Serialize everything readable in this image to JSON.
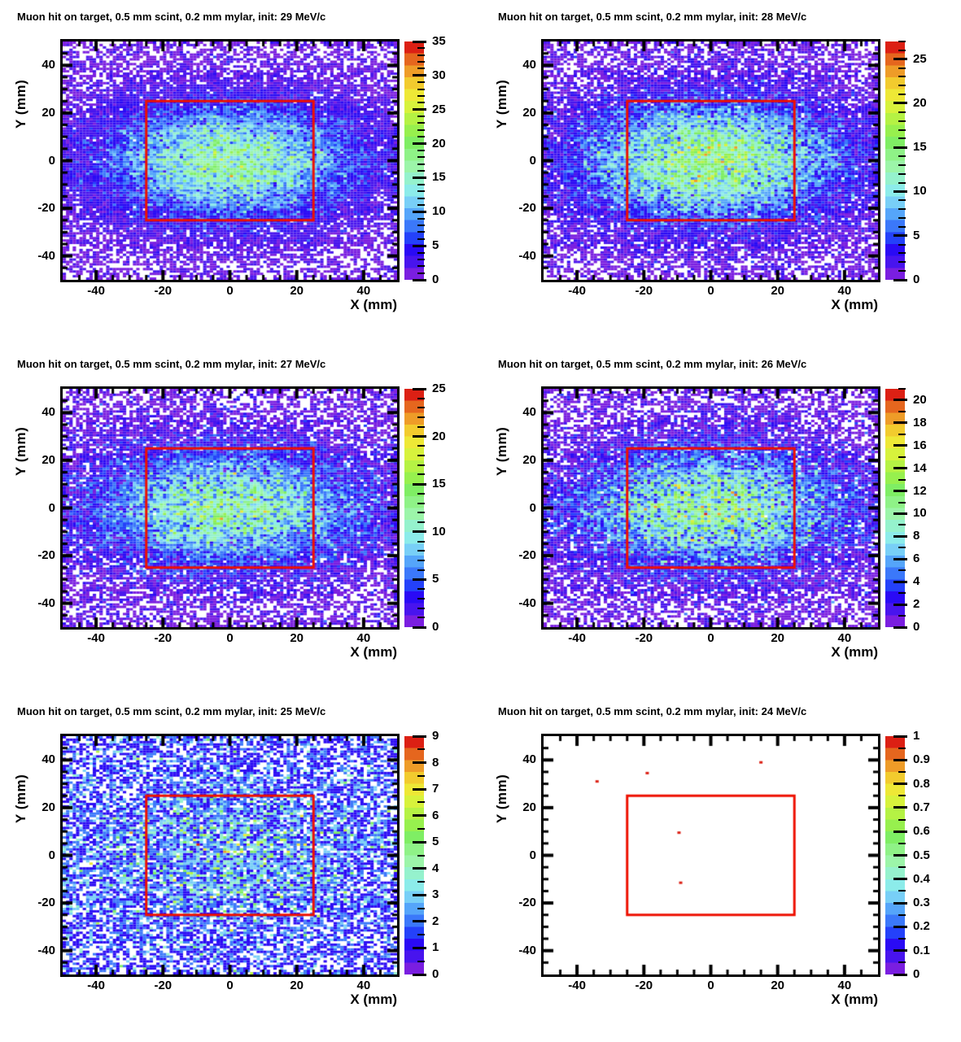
{
  "figure": {
    "background": "#ffffff",
    "frame_color": "#000000",
    "target_box": {
      "x_min": -25,
      "x_max": 25,
      "y_min": -25,
      "y_max": 25,
      "color": "#ee1000"
    },
    "palette": [
      "#7a1ee0",
      "#4814ee",
      "#2a0af5",
      "#2441fa",
      "#3b78fa",
      "#55a5fa",
      "#78cff7",
      "#8cecea",
      "#95f2cd",
      "#9cf5a9",
      "#8ff287",
      "#7fee64",
      "#97f04e",
      "#b5f244",
      "#d7f23c",
      "#eee836",
      "#f2cb2e",
      "#ee9c28",
      "#e5661e",
      "#dc2014"
    ]
  },
  "axes": {
    "xlabel": "X (mm)",
    "ylabel": "Y (mm)",
    "x_range": [
      -50,
      50
    ],
    "y_range": [
      -50,
      50
    ],
    "x_major_ticks": [
      -40,
      -20,
      0,
      20,
      40
    ],
    "y_major_ticks": [
      40,
      20,
      0,
      -20,
      -40
    ],
    "minor_tick_step_mm": 5,
    "bins_x": 100,
    "bins_y": 100
  },
  "chart_data": [
    {
      "type": "heatmap",
      "title": "Muon hit on target, 0.5 mm scint, 0.2 mm mylar, init: 29 MeV/c",
      "init_momentum_MeVc": 29,
      "z_min": 0,
      "z_max": 35,
      "colorbar_tick_labels": [
        "0",
        "5",
        "10",
        "15",
        "20",
        "25",
        "30",
        "35"
      ],
      "colorbar_minor_step": 1,
      "distribution": {
        "type": "gaussian2d_poisson",
        "background": 0.8,
        "amplitude": 16,
        "sigma_x_mm": 24,
        "sigma_y_mm": 15,
        "seed": 13
      },
      "points": null
    },
    {
      "type": "heatmap",
      "title": "Muon hit on target, 0.5 mm scint, 0.2 mm mylar, init: 28 MeV/c",
      "init_momentum_MeVc": 28,
      "z_min": 0,
      "z_max": 27,
      "colorbar_tick_labels": [
        "0",
        "5",
        "10",
        "15",
        "20",
        "25"
      ],
      "colorbar_minor_step": 1,
      "distribution": {
        "type": "gaussian2d_poisson",
        "background": 0.8,
        "amplitude": 14,
        "sigma_x_mm": 25,
        "sigma_y_mm": 16,
        "seed": 27
      },
      "points": null
    },
    {
      "type": "heatmap",
      "title": "Muon hit on target, 0.5 mm scint, 0.2 mm mylar, init: 27 MeV/c",
      "init_momentum_MeVc": 27,
      "z_min": 0,
      "z_max": 25,
      "colorbar_tick_labels": [
        "0",
        "5",
        "10",
        "15",
        "20",
        "25"
      ],
      "colorbar_minor_step": 1,
      "distribution": {
        "type": "gaussian2d_poisson",
        "background": 0.8,
        "amplitude": 11,
        "sigma_x_mm": 25,
        "sigma_y_mm": 15,
        "seed": 42
      },
      "points": null
    },
    {
      "type": "heatmap",
      "title": "Muon hit on target, 0.5 mm scint, 0.2 mm mylar, init: 26 MeV/c",
      "init_momentum_MeVc": 26,
      "z_min": 0,
      "z_max": 21,
      "colorbar_tick_labels": [
        "0",
        "2",
        "4",
        "6",
        "8",
        "10",
        "12",
        "14",
        "16",
        "18",
        "20"
      ],
      "colorbar_minor_step": 1,
      "distribution": {
        "type": "gaussian2d_poisson",
        "background": 0.8,
        "amplitude": 9.5,
        "sigma_x_mm": 26,
        "sigma_y_mm": 16,
        "seed": 57
      },
      "points": null
    },
    {
      "type": "heatmap",
      "title": "Muon hit on target, 0.5 mm scint, 0.2 mm mylar, init: 25 MeV/c",
      "init_momentum_MeVc": 25,
      "z_min": 0,
      "z_max": 9,
      "colorbar_tick_labels": [
        "0",
        "1",
        "2",
        "3",
        "4",
        "5",
        "6",
        "7",
        "8",
        "9"
      ],
      "colorbar_minor_step": 0.5,
      "distribution": {
        "type": "gaussian2d_poisson",
        "background": 0.9,
        "amplitude": 1.6,
        "sigma_x_mm": 30,
        "sigma_y_mm": 20,
        "seed": 71
      },
      "points": null
    },
    {
      "type": "heatmap",
      "title": "Muon hit on target, 0.5 mm scint, 0.2 mm mylar, init: 24 MeV/c",
      "init_momentum_MeVc": 24,
      "z_min": 0,
      "z_max": 1,
      "colorbar_tick_labels": [
        "0",
        "0.1",
        "0.2",
        "0.3",
        "0.4",
        "0.5",
        "0.6",
        "0.7",
        "0.8",
        "0.9",
        "1"
      ],
      "colorbar_minor_step": 0.05,
      "distribution": null,
      "points": [
        {
          "x": -34,
          "y": 31,
          "value": 1
        },
        {
          "x": -19,
          "y": 34.5,
          "value": 1
        },
        {
          "x": 15,
          "y": 39,
          "value": 1
        },
        {
          "x": -9.5,
          "y": 9.5,
          "value": 1
        },
        {
          "x": -9,
          "y": -11.5,
          "value": 1
        }
      ]
    }
  ]
}
